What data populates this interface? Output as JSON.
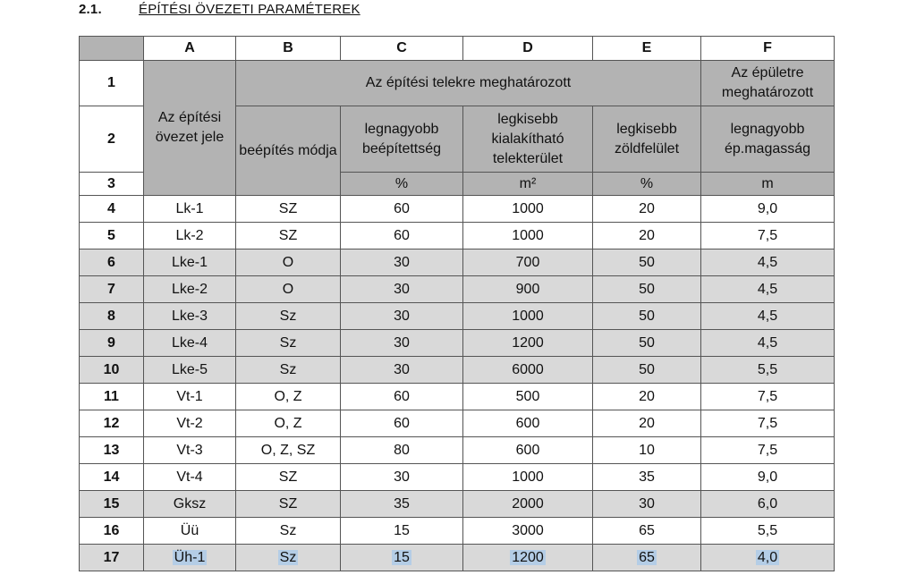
{
  "heading": {
    "number": "2.1.",
    "title": "ÉPÍTÉSI ÖVEZETI PARAMÉTEREK"
  },
  "columns": [
    "A",
    "B",
    "C",
    "D",
    "E",
    "F"
  ],
  "header": {
    "zone_code": "Az építési övezet jele",
    "plot_group": "Az építési telekre meghatározott",
    "building_group": "Az épületre meghatározott",
    "b": "beépítés módja",
    "c": "legnagyobb beépítettség",
    "d": "legkisebb kialakítható telekterület",
    "e": "legkisebb zöldfelület",
    "f": "legnagyobb ép.magasság",
    "unit_c": "%",
    "unit_d": "m²",
    "unit_e": "%",
    "unit_f": "m"
  },
  "header_row_numbers": [
    "1",
    "2",
    "3"
  ],
  "colors": {
    "header_gray": "#b3b3b3",
    "row_shade": "#d9d9d9",
    "selection": "#b4cde6"
  },
  "rows": [
    {
      "n": "4",
      "a": "Lk-1",
      "b": "SZ",
      "c": "60",
      "d": "1000",
      "e": "20",
      "f": "9,0",
      "shaded": false
    },
    {
      "n": "5",
      "a": "Lk-2",
      "b": "SZ",
      "c": "60",
      "d": "1000",
      "e": "20",
      "f": "7,5",
      "shaded": false
    },
    {
      "n": "6",
      "a": "Lke-1",
      "b": "O",
      "c": "30",
      "d": "700",
      "e": "50",
      "f": "4,5",
      "shaded": true
    },
    {
      "n": "7",
      "a": "Lke-2",
      "b": "O",
      "c": "30",
      "d": "900",
      "e": "50",
      "f": "4,5",
      "shaded": true
    },
    {
      "n": "8",
      "a": "Lke-3",
      "b": "Sz",
      "c": "30",
      "d": "1000",
      "e": "50",
      "f": "4,5",
      "shaded": true
    },
    {
      "n": "9",
      "a": "Lke-4",
      "b": "Sz",
      "c": "30",
      "d": "1200",
      "e": "50",
      "f": "4,5",
      "shaded": true
    },
    {
      "n": "10",
      "a": "Lke-5",
      "b": "Sz",
      "c": "30",
      "d": "6000",
      "e": "50",
      "f": "5,5",
      "shaded": true
    },
    {
      "n": "11",
      "a": "Vt-1",
      "b": "O, Z",
      "c": "60",
      "d": "500",
      "e": "20",
      "f": "7,5",
      "shaded": false
    },
    {
      "n": "12",
      "a": "Vt-2",
      "b": "O, Z",
      "c": "60",
      "d": "600",
      "e": "20",
      "f": "7,5",
      "shaded": false
    },
    {
      "n": "13",
      "a": "Vt-3",
      "b": "O, Z, SZ",
      "c": "80",
      "d": "600",
      "e": "10",
      "f": "7,5",
      "shaded": false
    },
    {
      "n": "14",
      "a": "Vt-4",
      "b": "SZ",
      "c": "30",
      "d": "1000",
      "e": "35",
      "f": "9,0",
      "shaded": false
    },
    {
      "n": "15",
      "a": "Gksz",
      "b": "SZ",
      "c": "35",
      "d": "2000",
      "e": "30",
      "f": "6,0",
      "shaded": true
    },
    {
      "n": "16",
      "a": "Üü",
      "b": "Sz",
      "c": "15",
      "d": "3000",
      "e": "65",
      "f": "5,5",
      "shaded": false
    },
    {
      "n": "17",
      "a": "Üh-1",
      "b": "Sz",
      "c": "15",
      "d": "1200",
      "e": "65",
      "f": "4,0",
      "shaded": true,
      "selected": true
    }
  ]
}
